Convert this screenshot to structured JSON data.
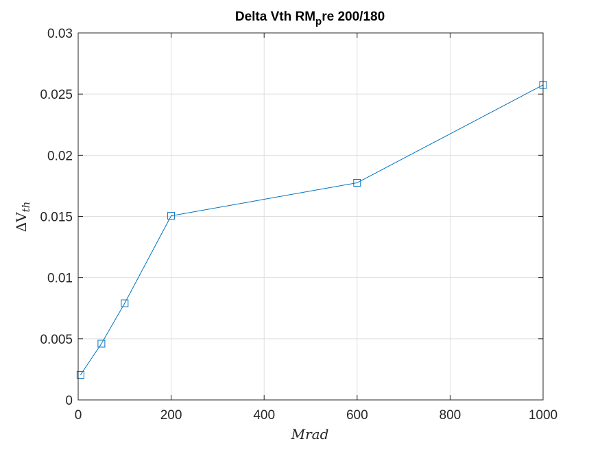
{
  "chart_data": {
    "type": "line",
    "title": {
      "main": "Delta Vth RM",
      "subscript": "p",
      "rest": "re 200/180"
    },
    "xlabel": "Mrad",
    "ylabel": {
      "prefix": "ΔV",
      "subscript": "th"
    },
    "xlim": [
      0,
      1000
    ],
    "ylim": [
      0,
      0.03
    ],
    "xticks": [
      0,
      200,
      400,
      600,
      800,
      1000
    ],
    "xtick_labels": [
      "0",
      "200",
      "400",
      "600",
      "800",
      "1000"
    ],
    "yticks": [
      0,
      0.005,
      0.01,
      0.015,
      0.02,
      0.025,
      0.03
    ],
    "ytick_labels": [
      "0",
      "0.005",
      "0.01",
      "0.015",
      "0.02",
      "0.025",
      "0.03"
    ],
    "grid": true,
    "series": [
      {
        "marker": "square",
        "color": "#0072bd",
        "x": [
          5,
          50,
          100,
          200,
          600,
          1000
        ],
        "y": [
          0.00205,
          0.0046,
          0.0079,
          0.01505,
          0.01775,
          0.02575
        ]
      }
    ]
  }
}
